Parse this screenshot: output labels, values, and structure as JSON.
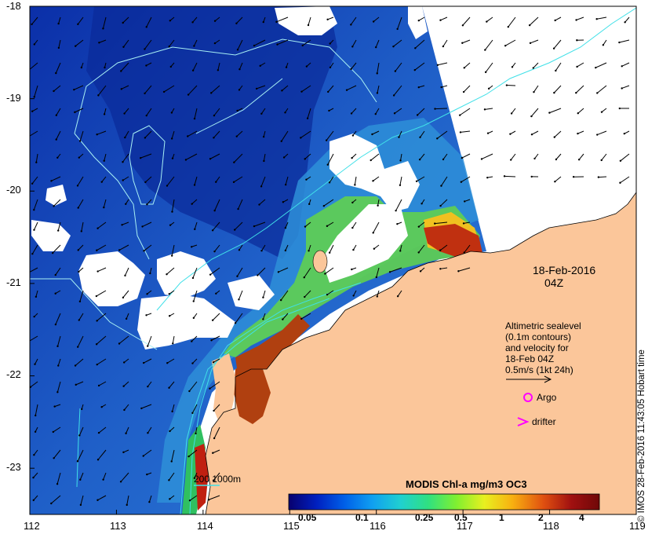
{
  "map": {
    "lon_ticks": [
      "112",
      "113",
      "114",
      "115",
      "116",
      "117",
      "118",
      "119"
    ],
    "lat_ticks": [
      "-18",
      "-19",
      "-20",
      "-21",
      "-22",
      "-23"
    ],
    "lon_range": [
      112,
      119
    ],
    "lat_range": [
      -23.5,
      -18
    ],
    "colors": {
      "land": "#fbc69a",
      "ocean_deep": "#0a2ea0",
      "ocean_mid": "#2a6fd0",
      "ocean_shelf": "#3da0e0",
      "cloud": "#ffffff",
      "contour": "#40e0e8",
      "argo": "#ff00ff",
      "drifter": "#ff00ff"
    }
  },
  "date_label": {
    "line1": "18-Feb-2016",
    "line2": "04Z"
  },
  "legend_text": {
    "line1": "Altimetric sealevel",
    "line2": "(0.1m contours)",
    "line3": "and velocity for",
    "line4": "18-Feb 04Z",
    "line5": "0.5m/s (1kt 24h)"
  },
  "markers": {
    "argo_label": "Argo",
    "drifter_label": "drifter"
  },
  "depth_legend": {
    "label": "200  1000m"
  },
  "colorbar": {
    "title": "MODIS Chl-a mg/m3 OC3",
    "ticks": [
      "0.05",
      "0.1",
      "0.25",
      "0.5",
      "1",
      "2",
      "4"
    ],
    "scale": "log",
    "colors": [
      "#08006e",
      "#0020c0",
      "#0060e8",
      "#10a0f0",
      "#20d0d0",
      "#30e080",
      "#80f030",
      "#e8f020",
      "#f8b010",
      "#e05010",
      "#a01010",
      "#700808"
    ]
  },
  "credit": "© IMOS 28-Feb-2016 11:43:05 Hobart time"
}
